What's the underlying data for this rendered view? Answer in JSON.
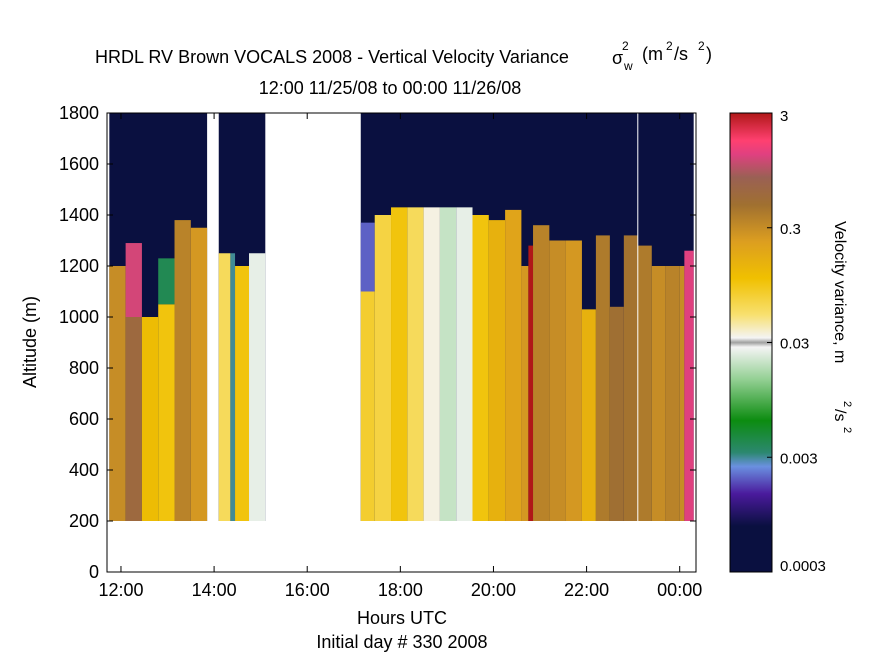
{
  "chart_data": {
    "type": "heatmap",
    "title": "HRDL RV Brown VOCALS 2008 - Vertical Velocity Variance",
    "title_symbol": "σ",
    "title_symbol_sub": "w",
    "title_symbol_sup": "2",
    "title_units_pre": "(m",
    "title_units_sup1": "2",
    "title_units_mid": "/s",
    "title_units_sup2": "2",
    "title_units_post": ")",
    "subtitle": "12:00 11/25/08 to 00:00 11/26/08",
    "xlabel": "Hours UTC",
    "xlabel2": "Initial day # 330  2008",
    "ylabel": "Altitude (m)",
    "x_range_hours": [
      11.7,
      24.35
    ],
    "ylim": [
      0,
      1800
    ],
    "x_ticks": [
      {
        "value": 12,
        "label": "12:00"
      },
      {
        "value": 14,
        "label": "14:00"
      },
      {
        "value": 16,
        "label": "16:00"
      },
      {
        "value": 18,
        "label": "18:00"
      },
      {
        "value": 20,
        "label": "20:00"
      },
      {
        "value": 22,
        "label": "22:00"
      },
      {
        "value": 24,
        "label": "00:00"
      }
    ],
    "y_ticks": [
      0,
      200,
      400,
      600,
      800,
      1000,
      1200,
      1400,
      1600,
      1800
    ],
    "colorbar": {
      "label": "Velocity variance, m",
      "label_sup1": "2",
      "label_mid": "/s",
      "label_sup2": "2",
      "scale": "log",
      "min": 0.0003,
      "max": 3,
      "ticks": [
        {
          "value": 3,
          "label": "3"
        },
        {
          "value": 0.3,
          "label": "0.3"
        },
        {
          "value": 0.03,
          "label": "0.03"
        },
        {
          "value": 0.003,
          "label": "0.003"
        },
        {
          "value": 0.0003,
          "label": "0.0003"
        }
      ],
      "stops": [
        {
          "pos": 0.0,
          "color": "#0a1040"
        },
        {
          "pos": 0.1,
          "color": "#0a1040"
        },
        {
          "pos": 0.17,
          "color": "#4a1a9c"
        },
        {
          "pos": 0.23,
          "color": "#6a90e0"
        },
        {
          "pos": 0.26,
          "color": "#2c8870"
        },
        {
          "pos": 0.33,
          "color": "#0c8c10"
        },
        {
          "pos": 0.42,
          "color": "#94d094"
        },
        {
          "pos": 0.49,
          "color": "#f4f4f4"
        },
        {
          "pos": 0.5,
          "color": "#a0a0a0"
        },
        {
          "pos": 0.51,
          "color": "#f4f4f4"
        },
        {
          "pos": 0.56,
          "color": "#f8e070"
        },
        {
          "pos": 0.64,
          "color": "#f0c000"
        },
        {
          "pos": 0.72,
          "color": "#dc9e20"
        },
        {
          "pos": 0.8,
          "color": "#a07030"
        },
        {
          "pos": 0.86,
          "color": "#9a6054"
        },
        {
          "pos": 0.91,
          "color": "#e04080"
        },
        {
          "pos": 0.94,
          "color": "#ff4070"
        },
        {
          "pos": 1.0,
          "color": "#b01818"
        }
      ]
    },
    "background_color": "#0a1040",
    "columns": [
      {
        "start": 11.75,
        "end": 12.1,
        "top": 1200,
        "cells": [
          {
            "from": 200,
            "to": 1200,
            "value": 0.3
          }
        ]
      },
      {
        "start": 12.1,
        "end": 12.45,
        "top": 1290,
        "cells": [
          {
            "from": 200,
            "to": 1000,
            "value": 0.6
          },
          {
            "from": 1000,
            "to": 1290,
            "value": 1.2
          }
        ]
      },
      {
        "start": 12.45,
        "end": 12.8,
        "top": 1000,
        "cells": [
          {
            "from": 200,
            "to": 1000,
            "value": 0.12
          }
        ]
      },
      {
        "start": 12.8,
        "end": 13.15,
        "top": 1300,
        "cells": [
          {
            "from": 200,
            "to": 1050,
            "value": 0.1
          },
          {
            "from": 1050,
            "to": 1230,
            "value": 0.004
          }
        ]
      },
      {
        "start": 13.15,
        "end": 13.5,
        "top": 1380,
        "cells": [
          {
            "from": 200,
            "to": 1380,
            "value": 0.35
          }
        ]
      },
      {
        "start": 13.5,
        "end": 13.85,
        "top": 1350,
        "cells": [
          {
            "from": 200,
            "to": 1350,
            "value": 0.25
          }
        ]
      },
      {
        "start": 14.1,
        "end": 14.35,
        "top": 1250,
        "cells": [
          {
            "from": 200,
            "to": 1250,
            "value": 0.06
          }
        ]
      },
      {
        "start": 14.35,
        "end": 14.45,
        "top": 1250,
        "cells": [
          {
            "from": 200,
            "to": 1250,
            "value": 0.003
          }
        ]
      },
      {
        "start": 14.45,
        "end": 14.75,
        "top": 1200,
        "cells": [
          {
            "from": 200,
            "to": 1200,
            "value": 0.1
          }
        ]
      },
      {
        "start": 14.75,
        "end": 15.1,
        "top": 1250,
        "cells": [
          {
            "from": 200,
            "to": 1250,
            "value": 0.025
          }
        ]
      },
      {
        "start": 17.15,
        "end": 17.45,
        "top": 1370,
        "cells": [
          {
            "from": 200,
            "to": 1100,
            "value": 0.08
          },
          {
            "from": 1100,
            "to": 1370,
            "value": 0.002
          }
        ]
      },
      {
        "start": 17.45,
        "end": 17.8,
        "top": 1400,
        "cells": [
          {
            "from": 200,
            "to": 1400,
            "value": 0.07
          }
        ]
      },
      {
        "start": 17.8,
        "end": 18.15,
        "top": 1430,
        "cells": [
          {
            "from": 200,
            "to": 1430,
            "value": 0.1
          }
        ]
      },
      {
        "start": 18.15,
        "end": 18.5,
        "top": 1430,
        "cells": [
          {
            "from": 200,
            "to": 1430,
            "value": 0.06
          }
        ]
      },
      {
        "start": 18.5,
        "end": 18.85,
        "top": 1430,
        "cells": [
          {
            "from": 200,
            "to": 1430,
            "value": 0.035
          }
        ]
      },
      {
        "start": 18.85,
        "end": 19.2,
        "top": 1430,
        "cells": [
          {
            "from": 200,
            "to": 1430,
            "value": 0.02
          }
        ]
      },
      {
        "start": 19.2,
        "end": 19.55,
        "top": 1430,
        "cells": [
          {
            "from": 200,
            "to": 1430,
            "value": 0.025
          }
        ]
      },
      {
        "start": 19.55,
        "end": 19.9,
        "top": 1400,
        "cells": [
          {
            "from": 200,
            "to": 1400,
            "value": 0.1
          }
        ]
      },
      {
        "start": 19.9,
        "end": 20.25,
        "top": 1380,
        "cells": [
          {
            "from": 200,
            "to": 1380,
            "value": 0.15
          }
        ]
      },
      {
        "start": 20.25,
        "end": 20.6,
        "top": 1420,
        "cells": [
          {
            "from": 200,
            "to": 1420,
            "value": 0.2
          }
        ]
      },
      {
        "start": 20.6,
        "end": 20.75,
        "top": 1200,
        "cells": [
          {
            "from": 200,
            "to": 1200,
            "value": 0.25
          }
        ]
      },
      {
        "start": 20.75,
        "end": 20.85,
        "top": 1280,
        "cells": [
          {
            "from": 200,
            "to": 1280,
            "value": 3
          }
        ]
      },
      {
        "start": 20.85,
        "end": 21.2,
        "top": 1360,
        "cells": [
          {
            "from": 200,
            "to": 1360,
            "value": 0.35
          }
        ]
      },
      {
        "start": 21.2,
        "end": 21.55,
        "top": 1300,
        "cells": [
          {
            "from": 200,
            "to": 1300,
            "value": 0.3
          }
        ]
      },
      {
        "start": 21.55,
        "end": 21.9,
        "top": 1300,
        "cells": [
          {
            "from": 200,
            "to": 1300,
            "value": 0.25
          }
        ]
      },
      {
        "start": 21.9,
        "end": 22.2,
        "top": 1030,
        "cells": [
          {
            "from": 200,
            "to": 1030,
            "value": 0.15
          }
        ]
      },
      {
        "start": 22.2,
        "end": 22.5,
        "top": 1320,
        "cells": [
          {
            "from": 200,
            "to": 1320,
            "value": 0.4
          }
        ]
      },
      {
        "start": 22.5,
        "end": 22.8,
        "top": 1040,
        "cells": [
          {
            "from": 200,
            "to": 1040,
            "value": 0.5
          }
        ]
      },
      {
        "start": 22.8,
        "end": 23.1,
        "top": 1320,
        "cells": [
          {
            "from": 200,
            "to": 1320,
            "value": 0.45
          }
        ]
      },
      {
        "start": 23.1,
        "end": 23.4,
        "top": 1280,
        "cells": [
          {
            "from": 200,
            "to": 1280,
            "value": 0.4
          }
        ]
      },
      {
        "start": 23.4,
        "end": 23.7,
        "top": 1200,
        "cells": [
          {
            "from": 200,
            "to": 1200,
            "value": 0.3
          }
        ]
      },
      {
        "start": 23.7,
        "end": 24.0,
        "top": 1200,
        "cells": [
          {
            "from": 200,
            "to": 1200,
            "value": 0.35
          }
        ]
      },
      {
        "start": 24.0,
        "end": 24.1,
        "top": 1200,
        "cells": [
          {
            "from": 200,
            "to": 1200,
            "value": 0.3
          }
        ]
      },
      {
        "start": 24.1,
        "end": 24.3,
        "top": 1260,
        "cells": [
          {
            "from": 200,
            "to": 1260,
            "value": 1.3
          }
        ]
      }
    ],
    "data_gaps": [
      {
        "start": 13.85,
        "end": 14.1
      },
      {
        "start": 15.1,
        "end": 17.15
      }
    ],
    "divider_hours": 23.1
  }
}
